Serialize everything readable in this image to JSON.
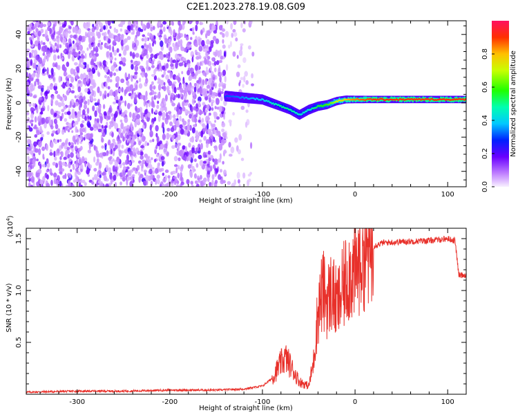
{
  "title": "C2E1.2023.278.19.08.G09",
  "colors": {
    "snr_line": "#e8302a",
    "axis": "#000000"
  },
  "chart_data": [
    {
      "type": "heatmap",
      "xlabel": "Height of straight line (km)",
      "ylabel": "Frequency (Hz)",
      "xlim": [
        -355,
        120
      ],
      "ylim": [
        -49,
        48
      ],
      "xticks": [
        -300,
        -200,
        -100,
        0,
        100
      ],
      "xtick_labels": [
        "-300",
        "-200",
        "-100",
        "0",
        "100"
      ],
      "yticks": [
        -40,
        -20,
        0,
        20,
        40
      ],
      "ytick_labels": [
        "-40",
        "-20",
        "0",
        "20",
        "40"
      ],
      "colorbar": {
        "label": "Normalized spectral amplitude",
        "range": [
          0,
          1
        ],
        "ticks": [
          0,
          0.2,
          0.4,
          0.6,
          0.8
        ],
        "tick_labels": [
          "0.0",
          "0.2",
          "0.4",
          "0.6",
          "0.8"
        ],
        "colormap": "rainbow"
      },
      "signal_track": {
        "x": [
          -140,
          -120,
          -100,
          -90,
          -80,
          -70,
          -60,
          -50,
          -40,
          -30,
          -20,
          -10,
          0,
          20,
          40,
          60,
          80,
          100,
          120
        ],
        "y": [
          4,
          3,
          2,
          0,
          -2,
          -4,
          -7,
          -4,
          -2,
          -1,
          1,
          2,
          2,
          2,
          2,
          2,
          2,
          2,
          2
        ],
        "amplitude": [
          0.3,
          0.35,
          0.4,
          0.45,
          0.5,
          0.5,
          0.45,
          0.45,
          0.55,
          0.6,
          0.7,
          0.8,
          0.85,
          0.9,
          0.9,
          0.9,
          0.9,
          0.9,
          0.9
        ]
      },
      "noise_region_x": [
        -355,
        -140
      ]
    },
    {
      "type": "line",
      "xlabel": "Height of straight line (km)",
      "ylabel": "SNR (10 * v/v)",
      "y_multiplier": "(x10",
      "y_multiplier_exp": "4",
      "y_multiplier_close": ")",
      "xlim": [
        -355,
        120
      ],
      "ylim": [
        0,
        1.6
      ],
      "xticks": [
        -300,
        -200,
        -100,
        0,
        100
      ],
      "xtick_labels": [
        "-300",
        "-200",
        "-100",
        "0",
        "100"
      ],
      "yticks": [
        0.5,
        1.0,
        1.5
      ],
      "ytick_labels": [
        "0.5",
        "1.0",
        "1.5"
      ],
      "series": [
        {
          "x": [
            -355,
            -300,
            -250,
            -200,
            -150,
            -120,
            -100,
            -90,
            -80,
            -75,
            -70,
            -65,
            -60,
            -50,
            -45,
            -40,
            -35,
            -30,
            -25,
            -20,
            -15,
            -10,
            -5,
            0,
            5,
            10,
            20,
            30,
            50,
            80,
            100,
            108,
            112,
            120
          ],
          "y": [
            0.02,
            0.03,
            0.03,
            0.04,
            0.04,
            0.05,
            0.08,
            0.15,
            0.3,
            0.35,
            0.28,
            0.2,
            0.12,
            0.08,
            0.3,
            0.8,
            1.0,
            0.9,
            1.0,
            0.85,
            0.95,
            1.1,
            1.2,
            1.15,
            1.3,
            1.38,
            1.43,
            1.46,
            1.47,
            1.48,
            1.5,
            1.48,
            1.15,
            1.15
          ]
        }
      ]
    }
  ]
}
